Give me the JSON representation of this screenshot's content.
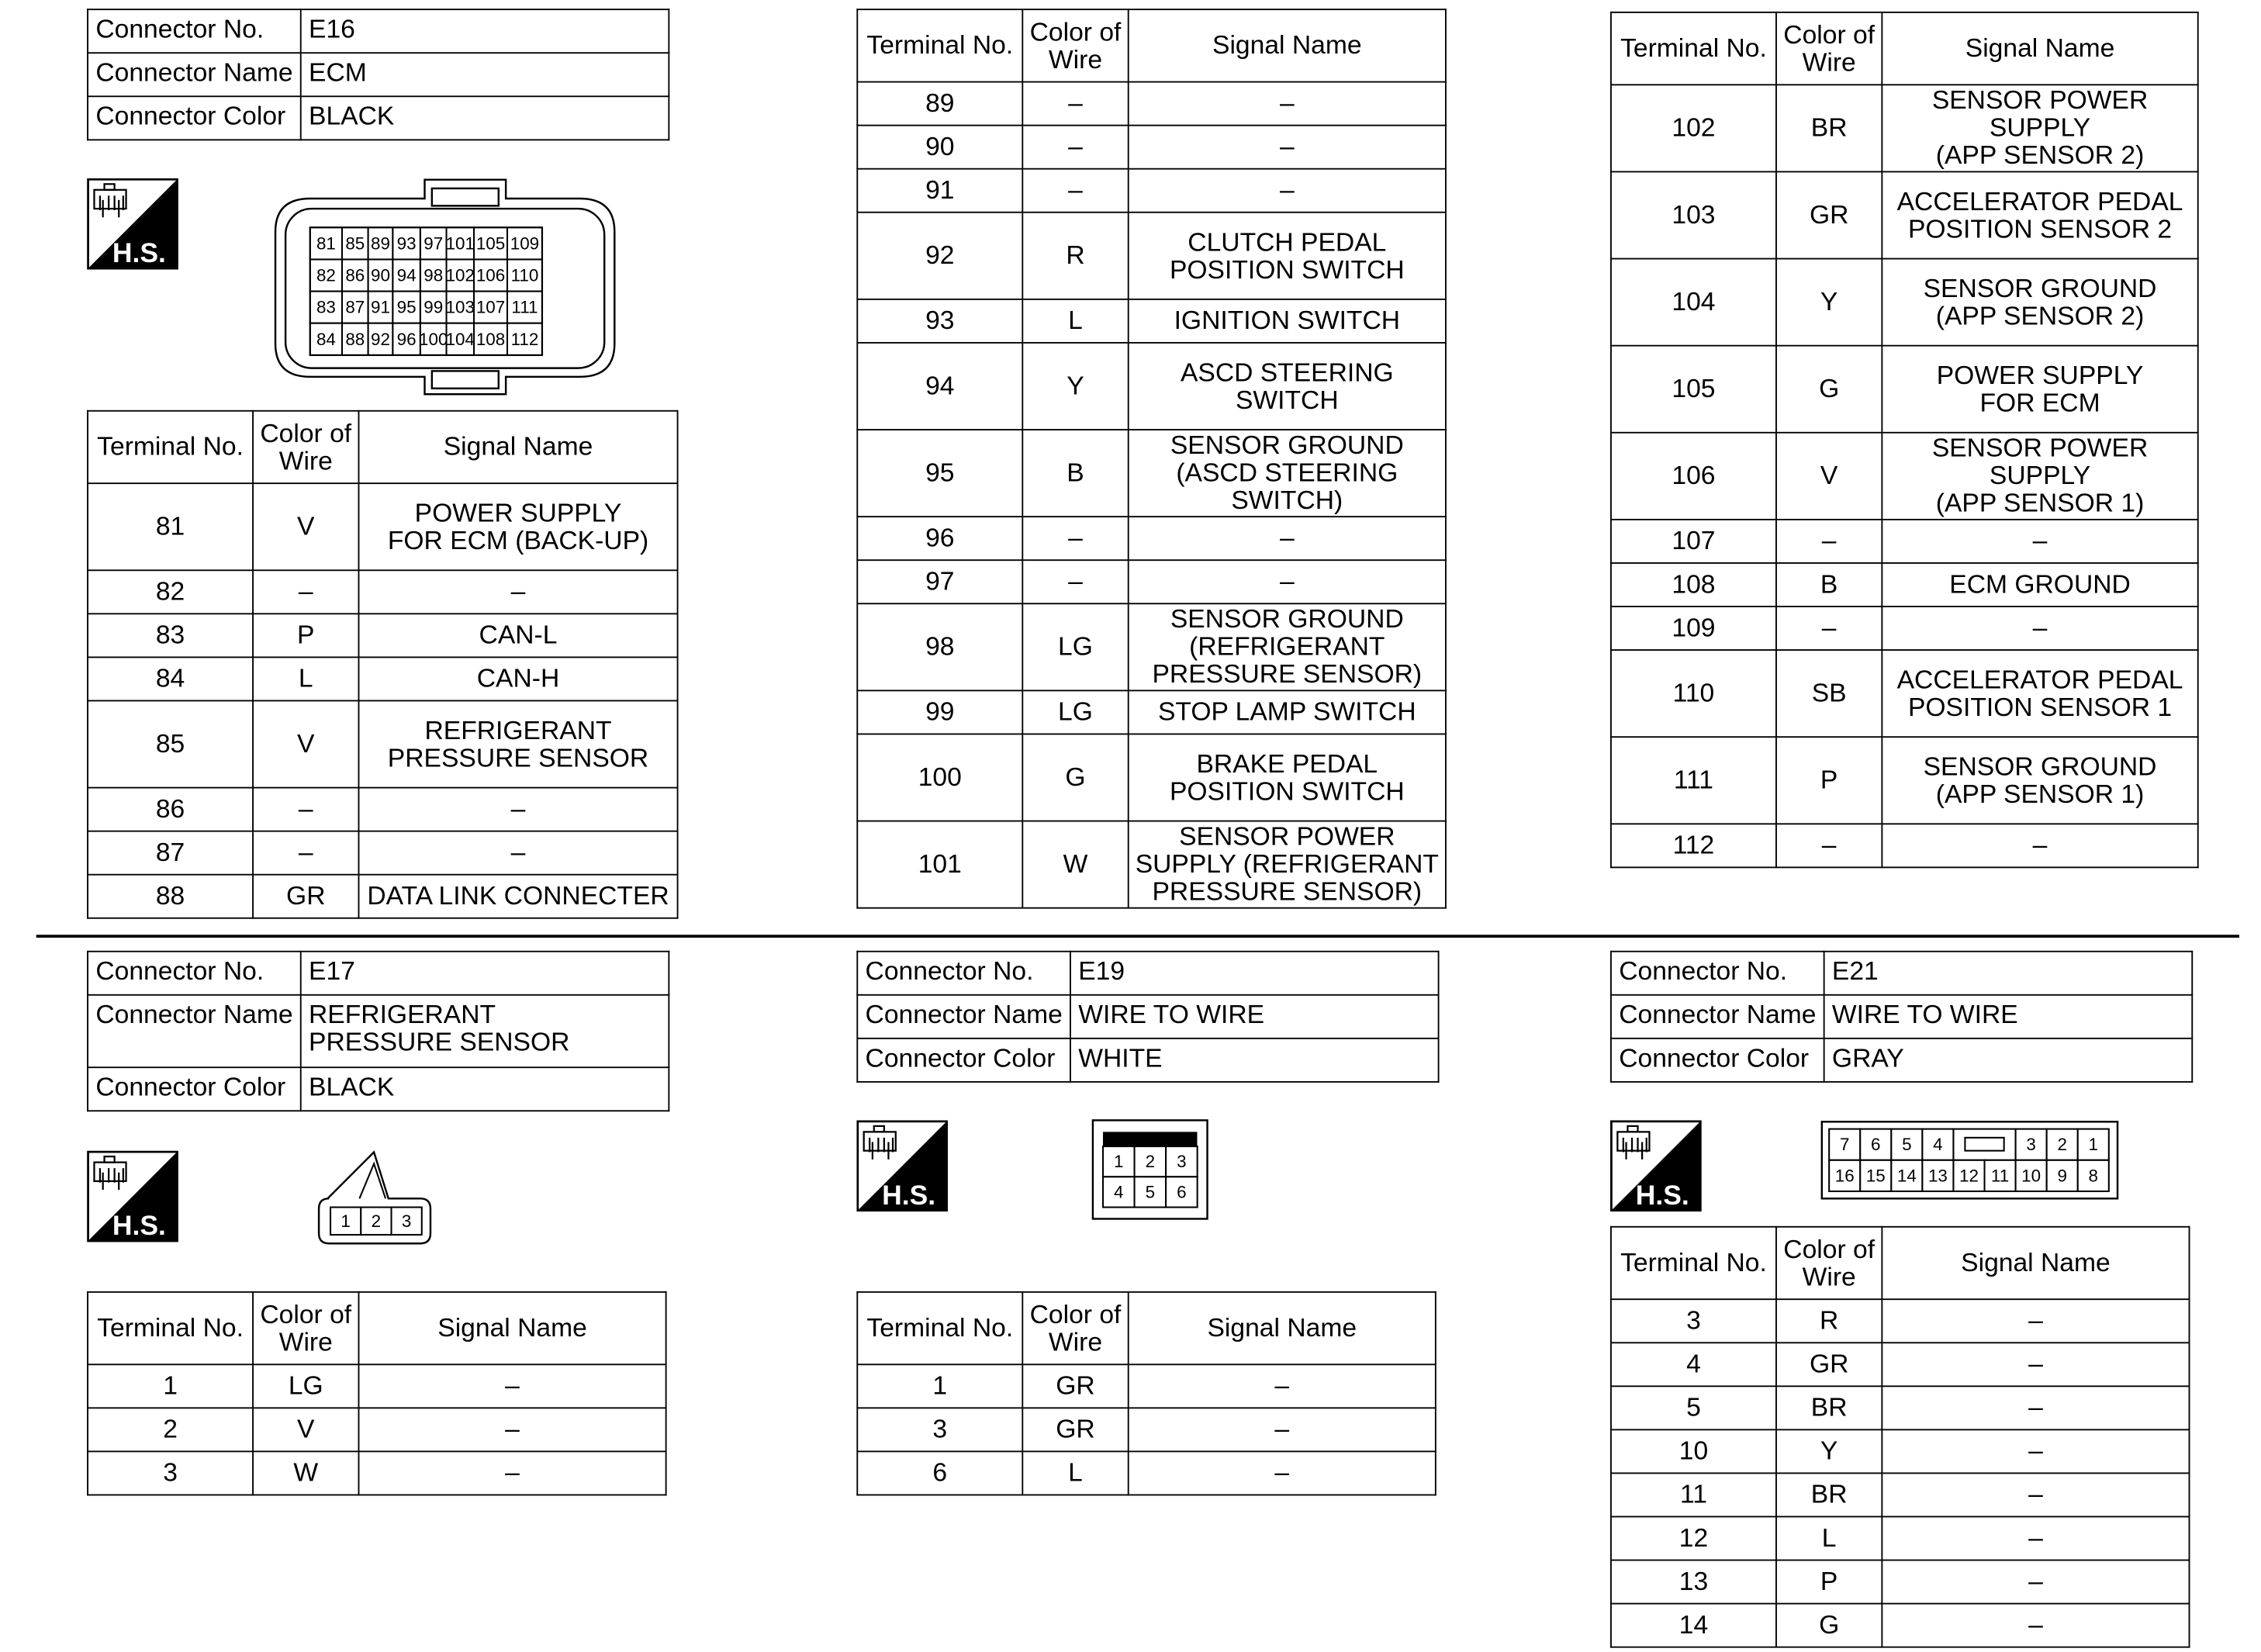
{
  "headers": {
    "terminal_no": "Terminal No.",
    "color_of_wire": "Color of\nWire",
    "signal_name": "Signal Name"
  },
  "info_labels": {
    "no": "Connector No.",
    "name": "Connector Name",
    "color": "Connector Color"
  },
  "hs_icon": {
    "label": "H.S.",
    "icon": "harness-side-connector-icon"
  },
  "connectors": [
    {
      "id": "E16",
      "connector_no": "E16",
      "connector_name": "ECM",
      "connector_color": "BLACK",
      "pin_layout": [
        [
          "81",
          "85",
          "89",
          "93",
          "97",
          "101",
          "105",
          "109"
        ],
        [
          "82",
          "86",
          "90",
          "94",
          "98",
          "102",
          "106",
          "110"
        ],
        [
          "83",
          "87",
          "91",
          "95",
          "99",
          "103",
          "107",
          "111"
        ],
        [
          "84",
          "88",
          "92",
          "96",
          "100",
          "104",
          "108",
          "112"
        ]
      ],
      "terminal_tables": [
        [
          {
            "terminal": "81",
            "color": "V",
            "signal": "POWER SUPPLY\nFOR ECM (BACK-UP)"
          },
          {
            "terminal": "82",
            "color": "–",
            "signal": "–"
          },
          {
            "terminal": "83",
            "color": "P",
            "signal": "CAN-L"
          },
          {
            "terminal": "84",
            "color": "L",
            "signal": "CAN-H"
          },
          {
            "terminal": "85",
            "color": "V",
            "signal": "REFRIGERANT\nPRESSURE SENSOR"
          },
          {
            "terminal": "86",
            "color": "–",
            "signal": "–"
          },
          {
            "terminal": "87",
            "color": "–",
            "signal": "–"
          },
          {
            "terminal": "88",
            "color": "GR",
            "signal": "DATA LINK CONNECTER"
          }
        ],
        [
          {
            "terminal": "89",
            "color": "–",
            "signal": "–"
          },
          {
            "terminal": "90",
            "color": "–",
            "signal": "–"
          },
          {
            "terminal": "91",
            "color": "–",
            "signal": "–"
          },
          {
            "terminal": "92",
            "color": "R",
            "signal": "CLUTCH PEDAL\nPOSITION SWITCH"
          },
          {
            "terminal": "93",
            "color": "L",
            "signal": "IGNITION SWITCH"
          },
          {
            "terminal": "94",
            "color": "Y",
            "signal": "ASCD STEERING\nSWITCH"
          },
          {
            "terminal": "95",
            "color": "B",
            "signal": "SENSOR GROUND\n(ASCD STEERING\nSWITCH)"
          },
          {
            "terminal": "96",
            "color": "–",
            "signal": "–"
          },
          {
            "terminal": "97",
            "color": "–",
            "signal": "–"
          },
          {
            "terminal": "98",
            "color": "LG",
            "signal": "SENSOR GROUND\n(REFRIGERANT\nPRESSURE SENSOR)"
          },
          {
            "terminal": "99",
            "color": "LG",
            "signal": "STOP LAMP SWITCH"
          },
          {
            "terminal": "100",
            "color": "G",
            "signal": "BRAKE PEDAL\nPOSITION SWITCH"
          },
          {
            "terminal": "101",
            "color": "W",
            "signal": "SENSOR POWER\nSUPPLY (REFRIGERANT\nPRESSURE SENSOR)"
          }
        ],
        [
          {
            "terminal": "102",
            "color": "BR",
            "signal": "SENSOR POWER\nSUPPLY\n(APP SENSOR 2)"
          },
          {
            "terminal": "103",
            "color": "GR",
            "signal": "ACCELERATOR PEDAL\nPOSITION SENSOR 2"
          },
          {
            "terminal": "104",
            "color": "Y",
            "signal": "SENSOR GROUND\n(APP SENSOR 2)"
          },
          {
            "terminal": "105",
            "color": "G",
            "signal": "POWER SUPPLY\nFOR ECM"
          },
          {
            "terminal": "106",
            "color": "V",
            "signal": "SENSOR POWER\nSUPPLY\n(APP SENSOR 1)"
          },
          {
            "terminal": "107",
            "color": "–",
            "signal": "–"
          },
          {
            "terminal": "108",
            "color": "B",
            "signal": "ECM GROUND"
          },
          {
            "terminal": "109",
            "color": "–",
            "signal": "–"
          },
          {
            "terminal": "110",
            "color": "SB",
            "signal": "ACCELERATOR PEDAL\nPOSITION SENSOR 1"
          },
          {
            "terminal": "111",
            "color": "P",
            "signal": "SENSOR GROUND\n(APP SENSOR 1)"
          },
          {
            "terminal": "112",
            "color": "–",
            "signal": "–"
          }
        ]
      ]
    },
    {
      "id": "E17",
      "connector_no": "E17",
      "connector_name": "REFRIGERANT\nPRESSURE SENSOR",
      "connector_color": "BLACK",
      "pin_layout": [
        [
          "1",
          "2",
          "3"
        ]
      ],
      "terminal_tables": [
        [
          {
            "terminal": "1",
            "color": "LG",
            "signal": "–"
          },
          {
            "terminal": "2",
            "color": "V",
            "signal": "–"
          },
          {
            "terminal": "3",
            "color": "W",
            "signal": "–"
          }
        ]
      ]
    },
    {
      "id": "E19",
      "connector_no": "E19",
      "connector_name": "WIRE TO WIRE",
      "connector_color": "WHITE",
      "pin_layout": [
        [
          "1",
          "2",
          "3"
        ],
        [
          "4",
          "5",
          "6"
        ]
      ],
      "terminal_tables": [
        [
          {
            "terminal": "1",
            "color": "GR",
            "signal": "–"
          },
          {
            "terminal": "3",
            "color": "GR",
            "signal": "–"
          },
          {
            "terminal": "6",
            "color": "L",
            "signal": "–"
          }
        ]
      ]
    },
    {
      "id": "E21",
      "connector_no": "E21",
      "connector_name": "WIRE TO WIRE",
      "connector_color": "GRAY",
      "pin_layout": [
        [
          "7",
          "6",
          "5",
          "4",
          "",
          "3",
          "2",
          "1"
        ],
        [
          "16",
          "15",
          "14",
          "13",
          "12",
          "11",
          "10",
          "9",
          "8"
        ]
      ],
      "terminal_tables": [
        [
          {
            "terminal": "3",
            "color": "R",
            "signal": "–"
          },
          {
            "terminal": "4",
            "color": "GR",
            "signal": "–"
          },
          {
            "terminal": "5",
            "color": "BR",
            "signal": "–"
          },
          {
            "terminal": "10",
            "color": "Y",
            "signal": "–"
          },
          {
            "terminal": "11",
            "color": "BR",
            "signal": "–"
          },
          {
            "terminal": "12",
            "color": "L",
            "signal": "–"
          },
          {
            "terminal": "13",
            "color": "P",
            "signal": "–"
          },
          {
            "terminal": "14",
            "color": "G",
            "signal": "–"
          }
        ]
      ]
    }
  ]
}
